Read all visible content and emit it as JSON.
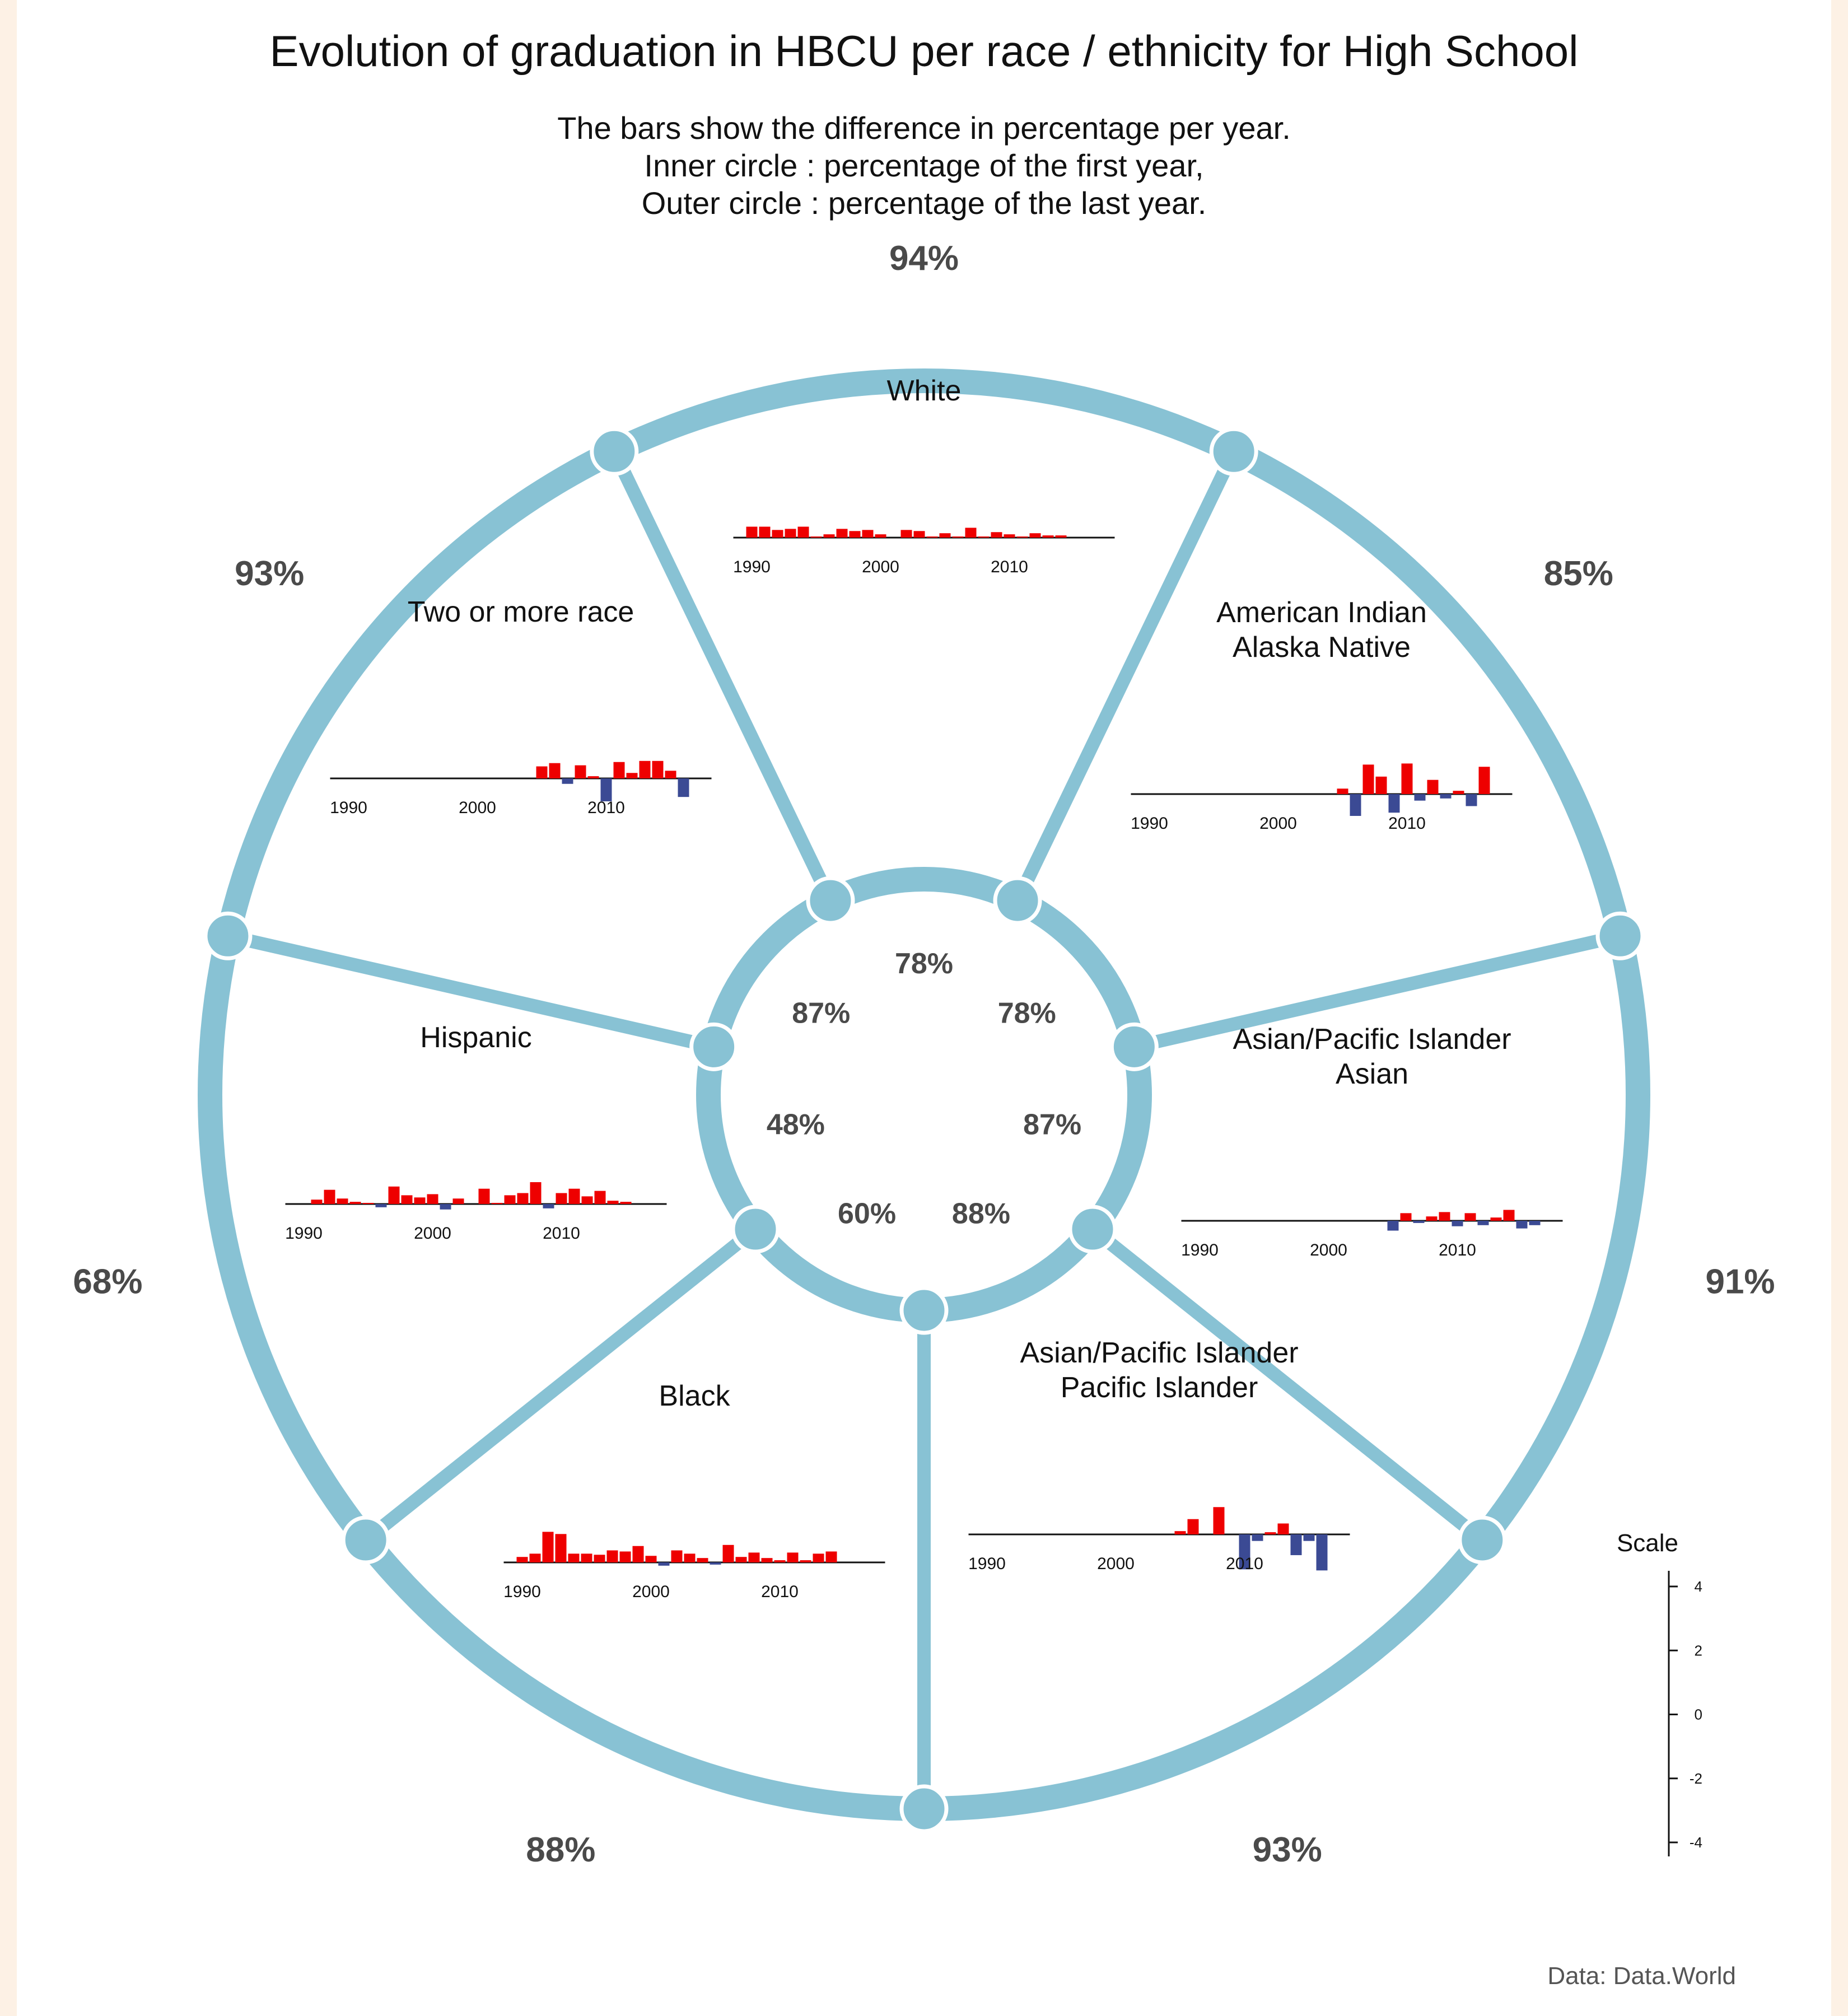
{
  "chart_data": {
    "type": "bar",
    "title": "Evolution of graduation in HBCU per race / ethnicity for High School",
    "subtitle": [
      "The bars show the difference in percentage per year.",
      "Inner circle : percentage of the first year,",
      "Outer circle : percentage of the last year."
    ],
    "source": "Data: Data.World",
    "scale": {
      "title": "Scale",
      "ticks": [
        "4",
        "2",
        "0",
        "-2",
        "-4"
      ],
      "range": [
        -4,
        4
      ]
    },
    "x_ticks": [
      "1990",
      "2000",
      "2010"
    ],
    "colors": {
      "ring": "#88c2d4",
      "positive": "#ee0000",
      "negative": "#3b4a94",
      "background": "#fdf1e5"
    },
    "groups": [
      {
        "name": "White",
        "label_lines": [
          "White"
        ],
        "first_pct": "78%",
        "last_pct": "94%",
        "values": [
          {
            "year": 1990,
            "v": 1.0
          },
          {
            "year": 1991,
            "v": 1.0
          },
          {
            "year": 1992,
            "v": 0.7
          },
          {
            "year": 1993,
            "v": 0.8
          },
          {
            "year": 1994,
            "v": 1.0
          },
          {
            "year": 1995,
            "v": 0.1
          },
          {
            "year": 1996,
            "v": 0.3
          },
          {
            "year": 1997,
            "v": 0.8
          },
          {
            "year": 1998,
            "v": 0.6
          },
          {
            "year": 1999,
            "v": 0.7
          },
          {
            "year": 2000,
            "v": 0.3
          },
          {
            "year": 2002,
            "v": 0.7
          },
          {
            "year": 2003,
            "v": 0.6
          },
          {
            "year": 2004,
            "v": 0.1
          },
          {
            "year": 2005,
            "v": 0.4
          },
          {
            "year": 2006,
            "v": 0.1
          },
          {
            "year": 2007,
            "v": 0.9
          },
          {
            "year": 2008,
            "v": 0.1
          },
          {
            "year": 2009,
            "v": 0.5
          },
          {
            "year": 2010,
            "v": 0.3
          },
          {
            "year": 2011,
            "v": 0.1
          },
          {
            "year": 2012,
            "v": 0.4
          },
          {
            "year": 2013,
            "v": 0.2
          },
          {
            "year": 2014,
            "v": 0.2
          }
        ]
      },
      {
        "name": "American Indian Alaska Native",
        "label_lines": [
          "American Indian",
          "Alaska Native"
        ],
        "first_pct": "78%",
        "last_pct": "85%",
        "values": [
          {
            "year": 2005,
            "v": 0.5
          },
          {
            "year": 2006,
            "v": -2.0
          },
          {
            "year": 2007,
            "v": 2.7
          },
          {
            "year": 2008,
            "v": 1.6
          },
          {
            "year": 2009,
            "v": -1.7
          },
          {
            "year": 2010,
            "v": 2.8
          },
          {
            "year": 2011,
            "v": -0.6
          },
          {
            "year": 2012,
            "v": 1.3
          },
          {
            "year": 2013,
            "v": -0.4
          },
          {
            "year": 2014,
            "v": 0.3
          },
          {
            "year": 2015,
            "v": -1.1
          },
          {
            "year": 2016,
            "v": 2.5
          }
        ]
      },
      {
        "name": "Asian/Pacific Islander Asian",
        "label_lines": [
          "Asian/Pacific Islander",
          "Asian"
        ],
        "first_pct": "87%",
        "last_pct": "91%",
        "values": [
          {
            "year": 2005,
            "v": -0.9
          },
          {
            "year": 2006,
            "v": 0.7
          },
          {
            "year": 2007,
            "v": -0.2
          },
          {
            "year": 2008,
            "v": 0.4
          },
          {
            "year": 2009,
            "v": 0.8
          },
          {
            "year": 2010,
            "v": -0.5
          },
          {
            "year": 2011,
            "v": 0.7
          },
          {
            "year": 2012,
            "v": -0.4
          },
          {
            "year": 2013,
            "v": 0.3
          },
          {
            "year": 2014,
            "v": 1.0
          },
          {
            "year": 2015,
            "v": -0.7
          },
          {
            "year": 2016,
            "v": -0.4
          }
        ]
      },
      {
        "name": "Asian/Pacific Islander Pacific Islander",
        "label_lines": [
          "Asian/Pacific Islander",
          "Pacific Islander"
        ],
        "first_pct": "88%",
        "last_pct": "93%",
        "values": [
          {
            "year": 2005,
            "v": 0.3
          },
          {
            "year": 2006,
            "v": 1.4
          },
          {
            "year": 2008,
            "v": 2.5
          },
          {
            "year": 2010,
            "v": -3.2
          },
          {
            "year": 2011,
            "v": -0.6
          },
          {
            "year": 2012,
            "v": 0.2
          },
          {
            "year": 2013,
            "v": 1.0
          },
          {
            "year": 2014,
            "v": -1.9
          },
          {
            "year": 2015,
            "v": -0.6
          },
          {
            "year": 2016,
            "v": -3.3
          }
        ]
      },
      {
        "name": "Black",
        "label_lines": [
          "Black"
        ],
        "first_pct": "60%",
        "last_pct": "88%",
        "values": [
          {
            "year": 1990,
            "v": 0.5
          },
          {
            "year": 1991,
            "v": 0.8
          },
          {
            "year": 1992,
            "v": 2.8
          },
          {
            "year": 1993,
            "v": 2.6
          },
          {
            "year": 1994,
            "v": 0.8
          },
          {
            "year": 1995,
            "v": 0.8
          },
          {
            "year": 1996,
            "v": 0.7
          },
          {
            "year": 1997,
            "v": 1.1
          },
          {
            "year": 1998,
            "v": 1.0
          },
          {
            "year": 1999,
            "v": 1.5
          },
          {
            "year": 2000,
            "v": 0.6
          },
          {
            "year": 2001,
            "v": -0.3
          },
          {
            "year": 2002,
            "v": 1.1
          },
          {
            "year": 2003,
            "v": 0.8
          },
          {
            "year": 2004,
            "v": 0.4
          },
          {
            "year": 2005,
            "v": -0.2
          },
          {
            "year": 2006,
            "v": 1.6
          },
          {
            "year": 2007,
            "v": 0.5
          },
          {
            "year": 2008,
            "v": 0.9
          },
          {
            "year": 2009,
            "v": 0.4
          },
          {
            "year": 2010,
            "v": 0.2
          },
          {
            "year": 2011,
            "v": 0.9
          },
          {
            "year": 2012,
            "v": 0.2
          },
          {
            "year": 2013,
            "v": 0.8
          },
          {
            "year": 2014,
            "v": 1.0
          }
        ]
      },
      {
        "name": "Hispanic",
        "label_lines": [
          "Hispanic"
        ],
        "first_pct": "48%",
        "last_pct": "68%",
        "values": [
          {
            "year": 1991,
            "v": 0.4
          },
          {
            "year": 1992,
            "v": 1.3
          },
          {
            "year": 1993,
            "v": 0.5
          },
          {
            "year": 1994,
            "v": 0.2
          },
          {
            "year": 1995,
            "v": 0.1
          },
          {
            "year": 1996,
            "v": -0.3
          },
          {
            "year": 1997,
            "v": 1.6
          },
          {
            "year": 1998,
            "v": 0.8
          },
          {
            "year": 1999,
            "v": 0.6
          },
          {
            "year": 2000,
            "v": 0.9
          },
          {
            "year": 2001,
            "v": -0.5
          },
          {
            "year": 2002,
            "v": 0.5
          },
          {
            "year": 2004,
            "v": 1.4
          },
          {
            "year": 2005,
            "v": 0.1
          },
          {
            "year": 2006,
            "v": 0.8
          },
          {
            "year": 2007,
            "v": 1.0
          },
          {
            "year": 2008,
            "v": 2.0
          },
          {
            "year": 2009,
            "v": -0.4
          },
          {
            "year": 2010,
            "v": 1.0
          },
          {
            "year": 2011,
            "v": 1.4
          },
          {
            "year": 2012,
            "v": 0.7
          },
          {
            "year": 2013,
            "v": 1.2
          },
          {
            "year": 2014,
            "v": 0.3
          },
          {
            "year": 2015,
            "v": 0.2
          }
        ]
      },
      {
        "name": "Two or more race",
        "label_lines": [
          "Two or more race"
        ],
        "first_pct": "87%",
        "last_pct": "93%",
        "values": [
          {
            "year": 2005,
            "v": 1.1
          },
          {
            "year": 2006,
            "v": 1.4
          },
          {
            "year": 2007,
            "v": -0.5
          },
          {
            "year": 2008,
            "v": 1.2
          },
          {
            "year": 2009,
            "v": 0.2
          },
          {
            "year": 2010,
            "v": -2.1
          },
          {
            "year": 2011,
            "v": 1.5
          },
          {
            "year": 2012,
            "v": 0.5
          },
          {
            "year": 2013,
            "v": 1.6
          },
          {
            "year": 2014,
            "v": 1.6
          },
          {
            "year": 2015,
            "v": 0.7
          },
          {
            "year": 2016,
            "v": -1.7
          }
        ]
      }
    ]
  }
}
